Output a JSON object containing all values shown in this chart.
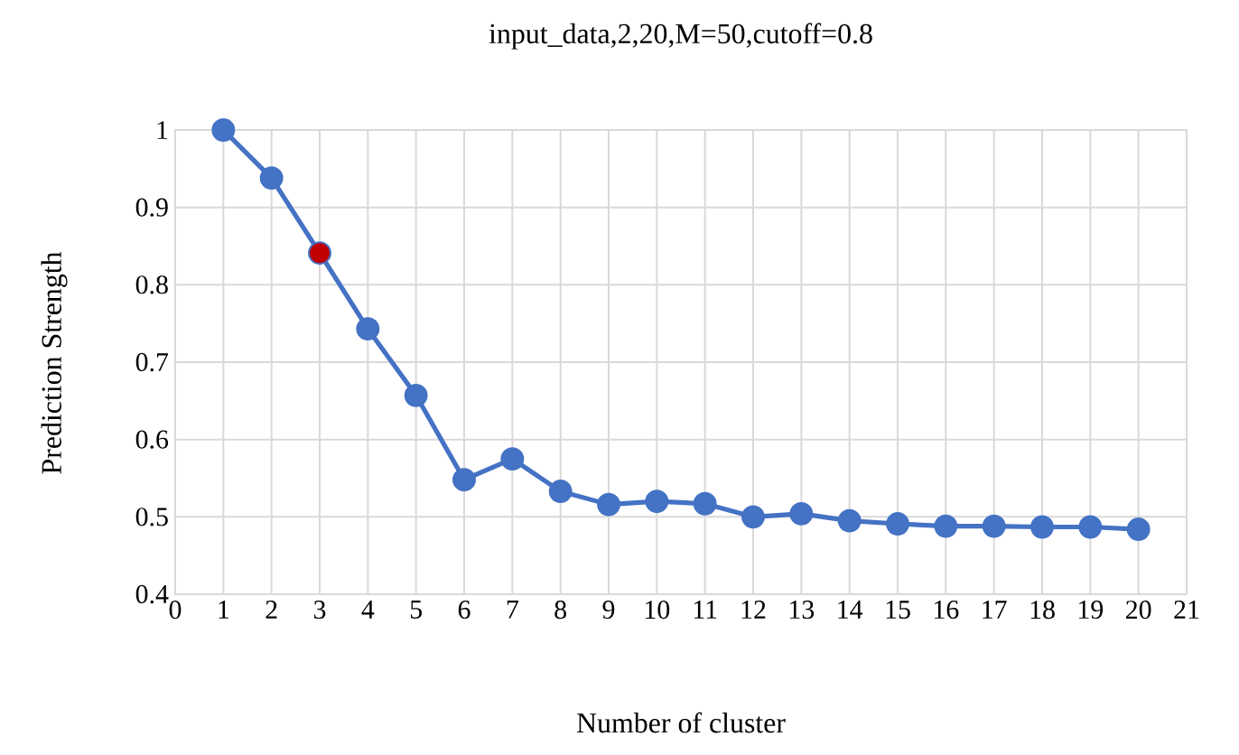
{
  "chart_data": {
    "type": "line",
    "title": "input_data,2,20,M=50,cutoff=0.8",
    "xlabel": "Number of cluster",
    "ylabel": "Prediction Strength",
    "x": [
      1,
      2,
      3,
      4,
      5,
      6,
      7,
      8,
      9,
      10,
      11,
      12,
      13,
      14,
      15,
      16,
      17,
      18,
      19,
      20
    ],
    "series": [
      {
        "color": "#4472c4",
        "colors": [
          "#4472c4",
          "#4472c4",
          "#c00000",
          "#4472c4",
          "#4472c4",
          "#4472c4",
          "#4472c4",
          "#4472c4",
          "#4472c4",
          "#4472c4",
          "#4472c4",
          "#4472c4",
          "#4472c4",
          "#4472c4",
          "#4472c4",
          "#4472c4",
          "#4472c4",
          "#4472c4",
          "#4472c4",
          "#4472c4"
        ],
        "values": [
          1.0,
          0.938,
          0.841,
          0.743,
          0.657,
          0.548,
          0.575,
          0.533,
          0.516,
          0.52,
          0.517,
          0.5,
          0.504,
          0.495,
          0.491,
          0.488,
          0.488,
          0.487,
          0.487,
          0.484
        ]
      }
    ],
    "xlim": [
      0,
      21
    ],
    "ylim": [
      0.4,
      1
    ],
    "xticks": [
      0,
      1,
      2,
      3,
      4,
      5,
      6,
      7,
      8,
      9,
      10,
      11,
      12,
      13,
      14,
      15,
      16,
      17,
      18,
      19,
      20,
      21
    ],
    "yticks": [
      0.4,
      0.5,
      0.6,
      0.7,
      0.8,
      0.9,
      1
    ],
    "grid": true,
    "marker": "circle",
    "line_style": "solid"
  }
}
